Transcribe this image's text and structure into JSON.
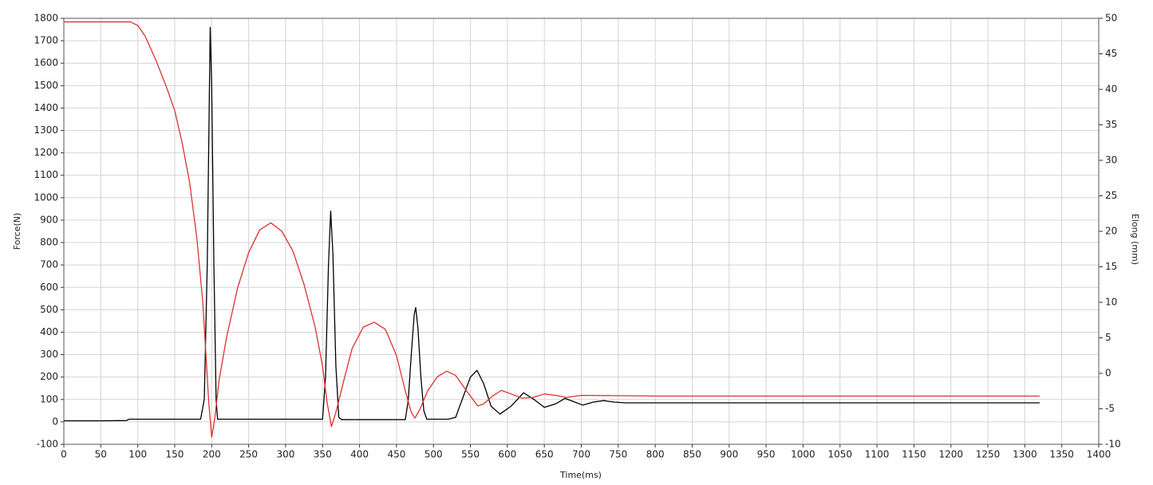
{
  "chart_data": {
    "type": "line",
    "xlabel": "Time(ms)",
    "ylabel": "Force(N)",
    "y2label": "Elong (mm)",
    "xlim": [
      0,
      1400
    ],
    "xticks": [
      0,
      50,
      100,
      150,
      200,
      250,
      300,
      350,
      400,
      450,
      500,
      550,
      600,
      650,
      700,
      750,
      800,
      850,
      900,
      950,
      1000,
      1050,
      1100,
      1150,
      1200,
      1250,
      1300,
      1350,
      1400
    ],
    "ylim": [
      -100,
      1800
    ],
    "yticks": [
      -100,
      0,
      100,
      200,
      300,
      400,
      500,
      600,
      700,
      800,
      900,
      1000,
      1100,
      1200,
      1300,
      1400,
      1500,
      1600,
      1700,
      1800
    ],
    "y2lim": [
      -10,
      50
    ],
    "y2ticks": [
      -10,
      -5,
      0,
      5,
      10,
      15,
      20,
      25,
      30,
      35,
      40,
      45,
      50
    ],
    "grid": true,
    "series": [
      {
        "color": "#000000",
        "x": [
          0,
          50,
          85,
          88,
          150,
          185,
          190,
          194,
          197,
          198,
          200,
          203,
          206,
          208,
          300,
          350,
          354,
          358,
          361,
          364,
          368,
          372,
          376,
          420,
          462,
          466,
          470,
          474,
          476,
          479,
          483,
          487,
          491,
          520,
          530,
          540,
          550,
          559,
          568,
          578,
          590,
          605,
          622,
          636,
          650,
          665,
          678,
          690,
          702,
          716,
          730,
          745,
          760,
          800,
          1000,
          1200,
          1320
        ],
        "values": [
          5,
          5,
          6,
          12,
          12,
          12,
          100,
          700,
          1500,
          1760,
          1500,
          700,
          100,
          12,
          12,
          12,
          200,
          700,
          940,
          750,
          250,
          20,
          10,
          10,
          10,
          100,
          300,
          480,
          510,
          420,
          200,
          50,
          12,
          12,
          20,
          110,
          200,
          230,
          170,
          70,
          35,
          70,
          130,
          100,
          65,
          80,
          105,
          90,
          75,
          88,
          95,
          88,
          85,
          85,
          85,
          85,
          85
        ]
      },
      {
        "color": "#e03030",
        "axis": "y2",
        "x": [
          0,
          90,
          100,
          110,
          125,
          140,
          150,
          160,
          170,
          180,
          188,
          192,
          196,
          200,
          204,
          210,
          220,
          235,
          250,
          265,
          280,
          295,
          310,
          325,
          340,
          350,
          356,
          362,
          368,
          380,
          390,
          405,
          420,
          435,
          450,
          462,
          470,
          475,
          482,
          492,
          505,
          518,
          530,
          545,
          560,
          568,
          580,
          592,
          605,
          620,
          635,
          650,
          665,
          680,
          700,
          800,
          1320
        ],
        "values": [
          49.5,
          49.5,
          49,
          47.5,
          44,
          40,
          37,
          32.5,
          27,
          19,
          10,
          3,
          -4,
          -9,
          -6.5,
          -1,
          5,
          12,
          17,
          20.2,
          21.2,
          20,
          17.2,
          12.5,
          6.5,
          1,
          -4,
          -7.5,
          -5.5,
          -0.5,
          3.5,
          6.5,
          7.2,
          6.2,
          2.5,
          -2.5,
          -5.5,
          -6.3,
          -5,
          -2.5,
          -0.5,
          0.3,
          -0.3,
          -2.5,
          -4.6,
          -4.3,
          -3.2,
          -2.4,
          -2.9,
          -3.5,
          -3.4,
          -2.9,
          -3.1,
          -3.4,
          -3.1,
          -3.2,
          -3.2
        ]
      }
    ]
  }
}
